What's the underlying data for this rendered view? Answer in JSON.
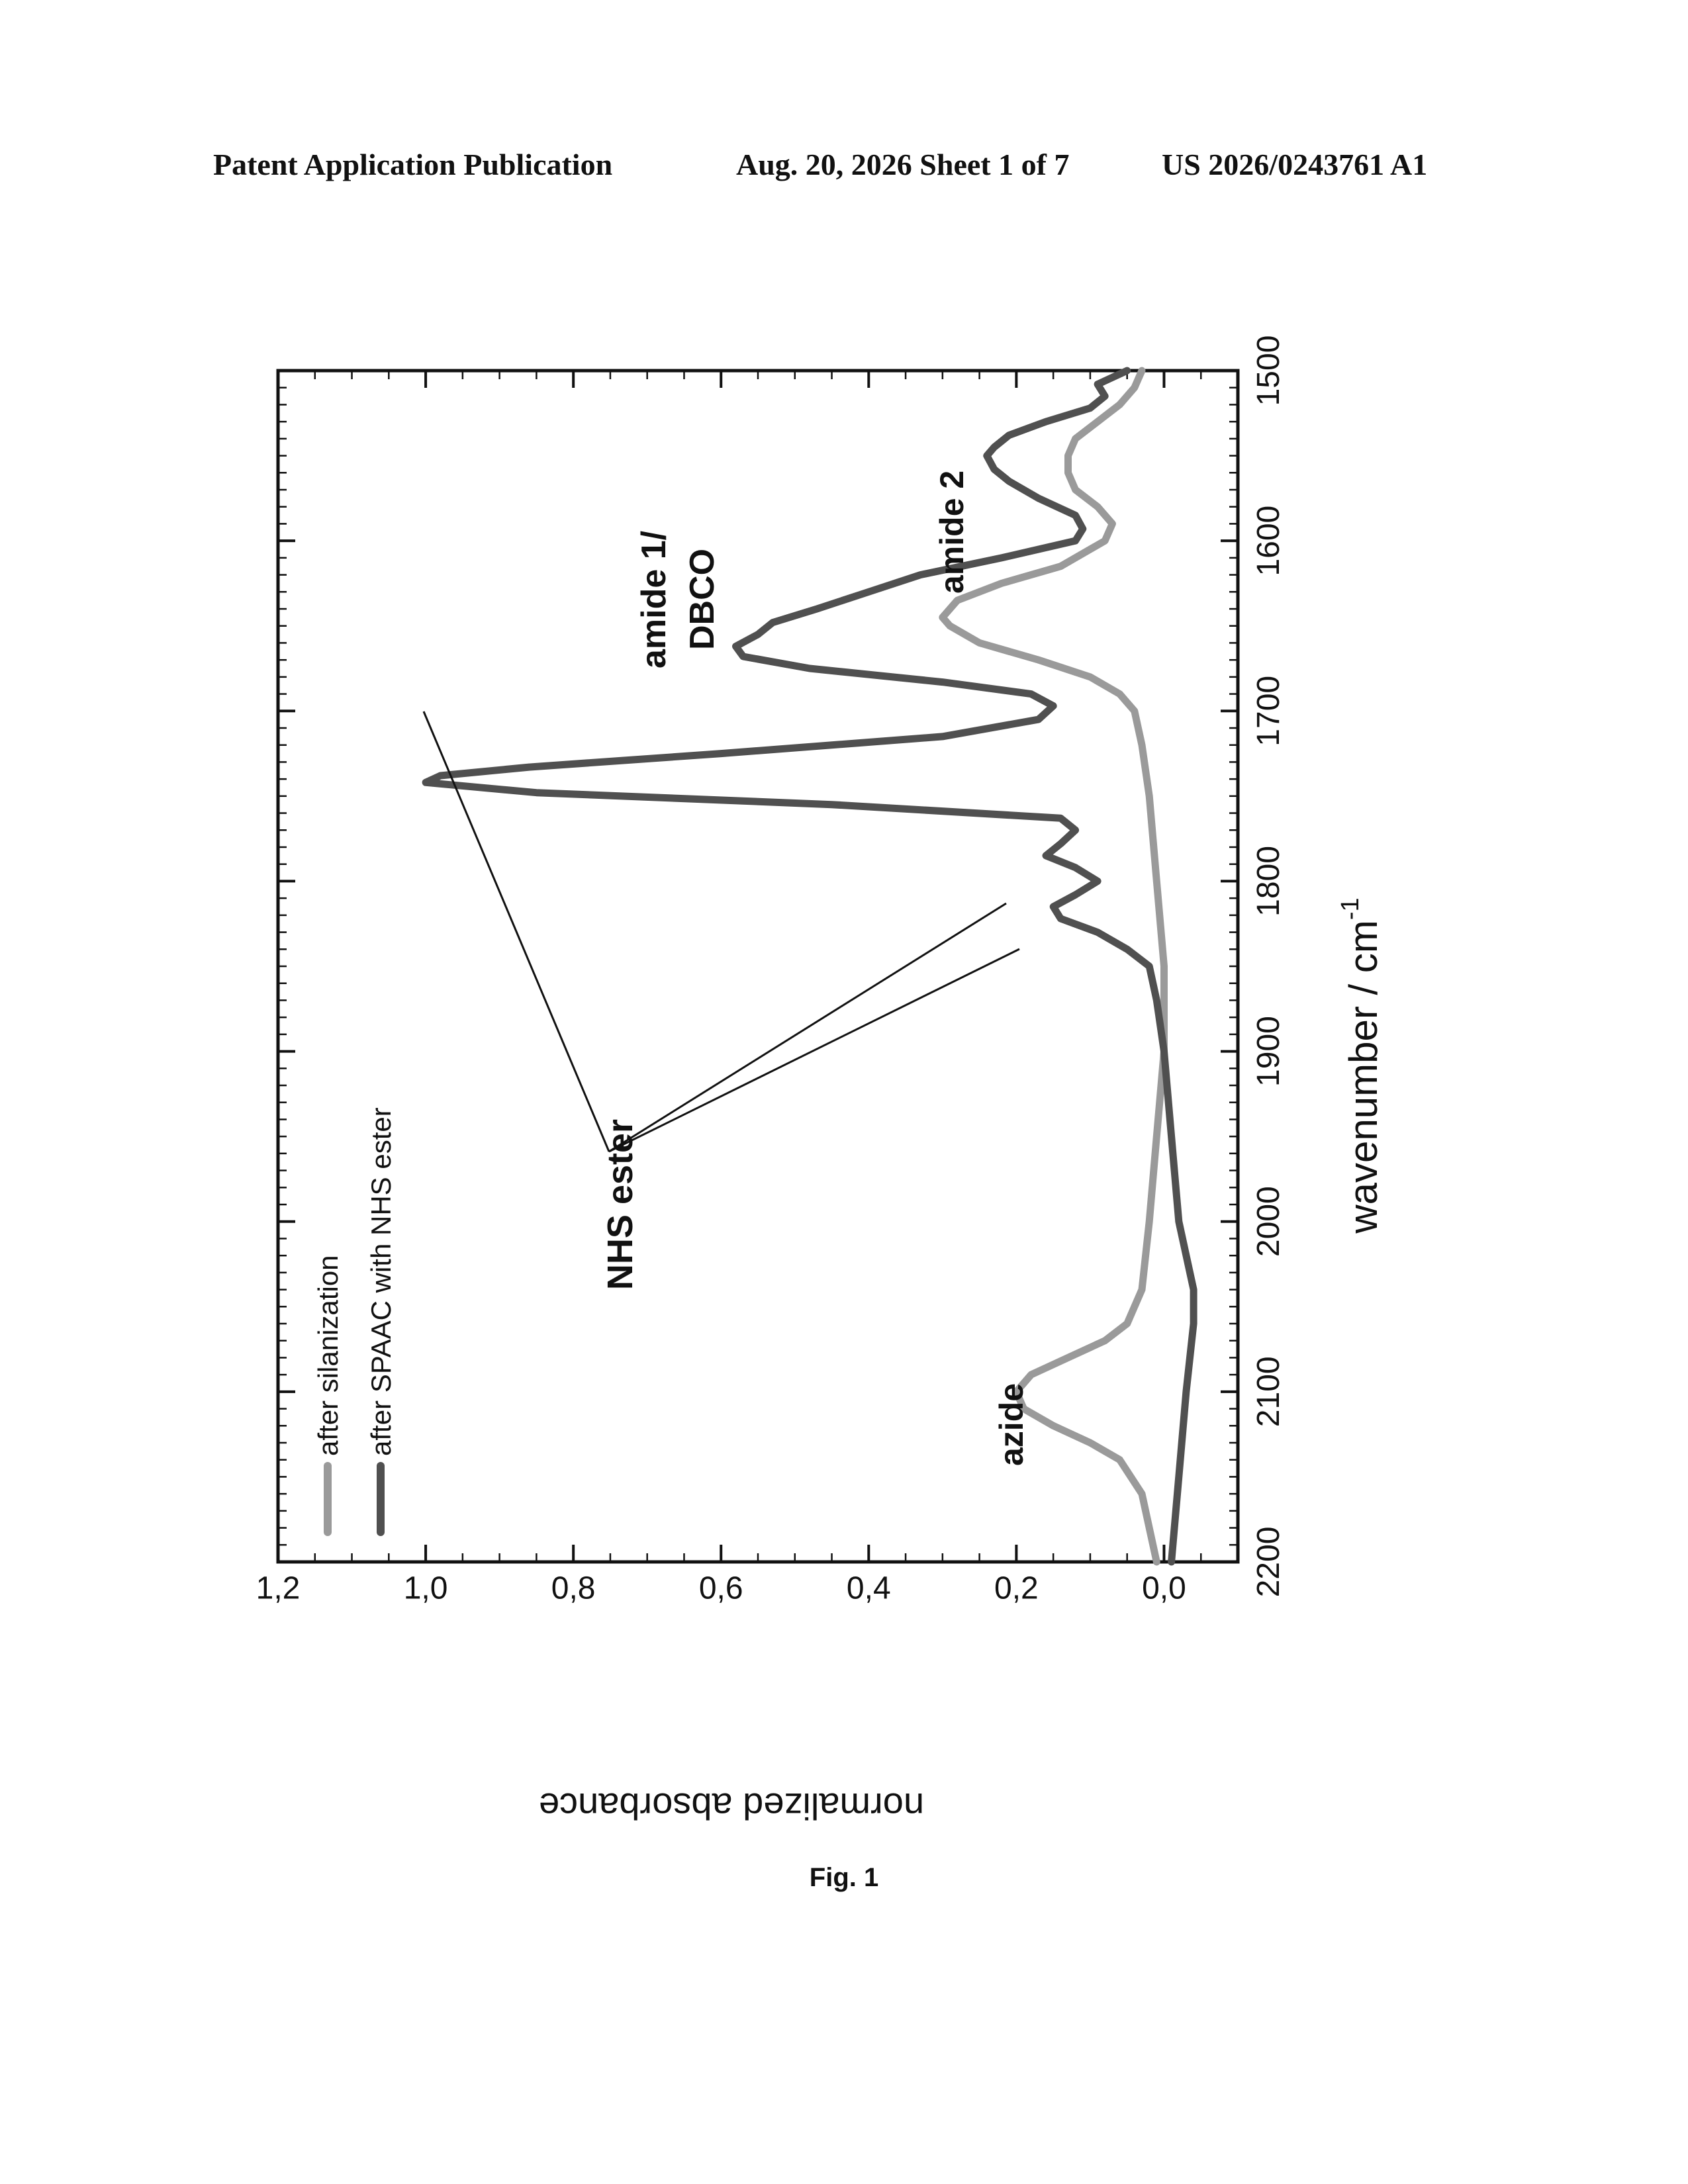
{
  "header": {
    "left": "Patent Application Publication",
    "middle": "Aug. 20, 2026  Sheet 1 of 7",
    "right": "US 2026/0243761 A1"
  },
  "caption": "Fig. 1",
  "chart_data": {
    "type": "line",
    "xlabel": "wavenumber / cm",
    "xlabel_superscript": "-1",
    "ylabel": "normalized absorbance",
    "xlim": [
      2200,
      1500
    ],
    "ylim": [
      -0.1,
      1.2
    ],
    "x_reversed": true,
    "x_ticks": [
      "2200",
      "2100",
      "2000",
      "1900",
      "1800",
      "1700",
      "1600",
      "1500"
    ],
    "y_ticks": [
      "0,0",
      "0,2",
      "0,4",
      "0,6",
      "0,8",
      "1,0",
      "1,2"
    ],
    "legend_position": "top-left",
    "grid": false,
    "series": [
      {
        "name": "after silanization",
        "color": "#9a9a9a",
        "x": [
          2200,
          2160,
          2140,
          2130,
          2120,
          2110,
          2100,
          2090,
          2080,
          2070,
          2060,
          2040,
          2000,
          1950,
          1900,
          1850,
          1800,
          1750,
          1720,
          1700,
          1690,
          1680,
          1670,
          1660,
          1650,
          1645,
          1635,
          1625,
          1615,
          1600,
          1590,
          1580,
          1570,
          1560,
          1550,
          1540,
          1530,
          1520,
          1510,
          1500
        ],
        "y": [
          0.01,
          0.03,
          0.06,
          0.1,
          0.15,
          0.19,
          0.2,
          0.18,
          0.13,
          0.08,
          0.05,
          0.03,
          0.02,
          0.01,
          0.0,
          0.0,
          0.01,
          0.02,
          0.03,
          0.04,
          0.06,
          0.1,
          0.17,
          0.25,
          0.29,
          0.3,
          0.28,
          0.22,
          0.14,
          0.08,
          0.07,
          0.09,
          0.12,
          0.13,
          0.13,
          0.12,
          0.09,
          0.06,
          0.04,
          0.03
        ]
      },
      {
        "name": "after SPAAC with NHS ester",
        "color": "#505050",
        "x": [
          2200,
          2150,
          2100,
          2060,
          2040,
          2000,
          1950,
          1900,
          1870,
          1850,
          1840,
          1830,
          1822,
          1815,
          1808,
          1800,
          1792,
          1785,
          1778,
          1770,
          1763,
          1755,
          1748,
          1742,
          1738,
          1733,
          1725,
          1715,
          1705,
          1697,
          1690,
          1683,
          1675,
          1668,
          1662,
          1655,
          1648,
          1640,
          1630,
          1620,
          1610,
          1600,
          1593,
          1585,
          1575,
          1565,
          1558,
          1550,
          1545,
          1538,
          1530,
          1522,
          1515,
          1508,
          1500
        ],
        "y": [
          -0.01,
          -0.02,
          -0.03,
          -0.04,
          -0.04,
          -0.02,
          -0.01,
          0.0,
          0.01,
          0.02,
          0.05,
          0.09,
          0.14,
          0.15,
          0.12,
          0.09,
          0.12,
          0.16,
          0.14,
          0.12,
          0.14,
          0.45,
          0.85,
          1.0,
          0.98,
          0.86,
          0.6,
          0.3,
          0.17,
          0.15,
          0.18,
          0.3,
          0.48,
          0.57,
          0.58,
          0.55,
          0.53,
          0.47,
          0.4,
          0.33,
          0.22,
          0.12,
          0.11,
          0.12,
          0.17,
          0.21,
          0.23,
          0.24,
          0.23,
          0.21,
          0.16,
          0.1,
          0.08,
          0.09,
          0.05
        ]
      }
    ],
    "annotations": {
      "azide": "azide",
      "nhs_ester": "NHS ester",
      "amide1_line1": "amide 1/",
      "amide1_line2": "DBCO",
      "amide2": "amide 2"
    }
  }
}
